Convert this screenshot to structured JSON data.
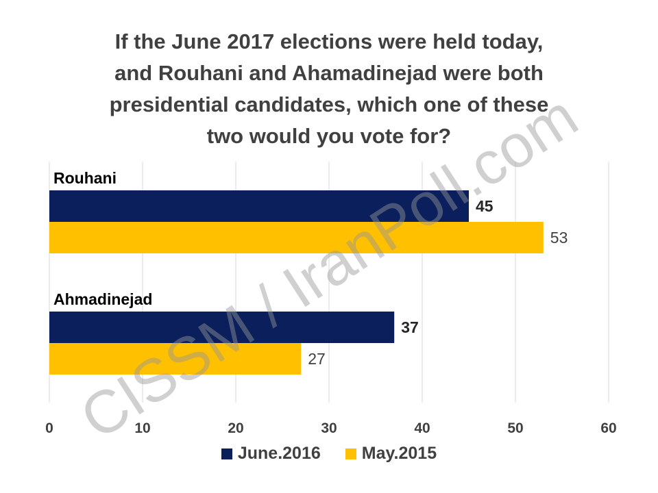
{
  "chart_data": {
    "type": "bar",
    "orientation": "horizontal",
    "title": "If the June 2017 elections were held today,\nand Rouhani and Ahamadinejad  were both\npresidential candidates, which one of these\ntwo would you vote for?",
    "categories": [
      "Rouhani",
      "Ahmadinejad"
    ],
    "series": [
      {
        "name": "June.2016",
        "values": [
          45,
          37
        ],
        "color": "#0a1f5c",
        "label_bold": true
      },
      {
        "name": "May.2015",
        "values": [
          53,
          27
        ],
        "color": "#ffc000",
        "label_bold": false
      }
    ],
    "xlim": [
      0,
      60
    ],
    "xticks": [
      0,
      10,
      20,
      30,
      40,
      50,
      60
    ],
    "grid": true,
    "legend_position": "bottom",
    "watermark": "CISSM / IranPoll.com"
  }
}
